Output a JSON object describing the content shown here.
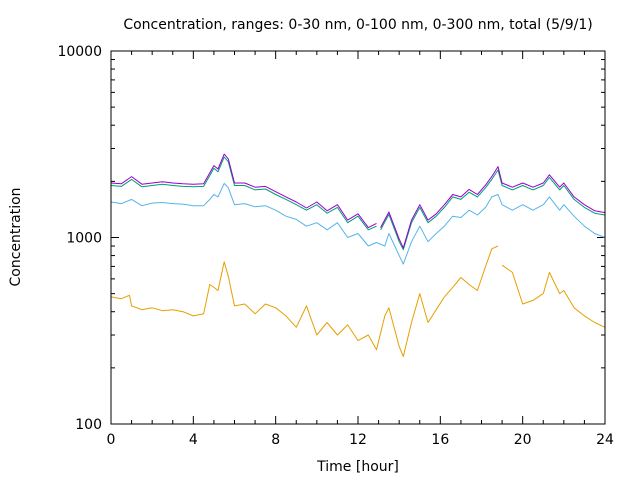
{
  "chart_data": {
    "type": "line",
    "title": "Concentration, ranges: 0-30 nm, 0-100 nm, 0-300 nm, total (5/9/1)",
    "xlabel": "Time [hour]",
    "ylabel": "Concentration",
    "xlim": [
      0,
      24
    ],
    "ylim": [
      100,
      10000
    ],
    "yscale": "log",
    "grid": false,
    "xticks": [
      {
        "value": 0,
        "label": "0"
      },
      {
        "value": 4,
        "label": "4"
      },
      {
        "value": 8,
        "label": "8"
      },
      {
        "value": 12,
        "label": "12"
      },
      {
        "value": 16,
        "label": "16"
      },
      {
        "value": 20,
        "label": "20"
      },
      {
        "value": 24,
        "label": "24"
      }
    ],
    "yticks": [
      {
        "value": 100,
        "label": "100"
      },
      {
        "value": 1000,
        "label": "1000"
      },
      {
        "value": 10000,
        "label": "10000"
      }
    ],
    "series": [
      {
        "color": "#e69f00",
        "x": [
          0,
          0.5,
          0.9,
          1.0,
          1.5,
          2.0,
          2.5,
          3.0,
          3.5,
          4.0,
          4.5,
          4.8,
          5.0,
          5.2,
          5.5,
          5.7,
          6.0,
          6.5,
          7.0,
          7.5,
          8.0,
          8.5,
          9.0,
          9.5,
          10.0,
          10.5,
          11.0,
          11.5,
          12.0,
          12.5,
          12.9,
          13.3,
          13.5,
          14.0,
          14.2,
          14.6,
          15.0,
          15.4,
          15.8,
          16.2,
          16.6,
          17.0,
          17.4,
          17.8,
          18.2,
          18.5,
          18.8,
          null,
          19.0,
          19.5,
          20.0,
          20.5,
          21.0,
          21.3,
          21.8,
          22.0,
          22.5,
          23.0,
          23.5,
          24.0
        ],
        "y": [
          480,
          470,
          490,
          430,
          410,
          420,
          405,
          410,
          400,
          380,
          390,
          560,
          540,
          520,
          740,
          620,
          430,
          440,
          390,
          440,
          420,
          380,
          330,
          430,
          300,
          350,
          300,
          340,
          280,
          300,
          250,
          380,
          420,
          260,
          230,
          350,
          500,
          350,
          410,
          480,
          540,
          610,
          560,
          520,
          700,
          870,
          900,
          null,
          710,
          650,
          440,
          460,
          500,
          650,
          500,
          520,
          420,
          380,
          350,
          330
        ]
      },
      {
        "color": "#56b4e9",
        "x": [
          0,
          0.5,
          1.0,
          1.5,
          2.0,
          2.5,
          3.0,
          3.5,
          4.0,
          4.5,
          4.8,
          5.0,
          5.2,
          5.5,
          5.7,
          6.0,
          6.5,
          7.0,
          7.5,
          8.0,
          8.5,
          9.0,
          9.5,
          10.0,
          10.5,
          11.0,
          11.5,
          12.0,
          12.5,
          12.9,
          13.3,
          13.5,
          14.0,
          14.2,
          14.6,
          15.0,
          15.4,
          15.8,
          16.2,
          16.6,
          17.0,
          17.4,
          17.8,
          18.2,
          18.5,
          18.8,
          19.0,
          19.5,
          20.0,
          20.5,
          21.0,
          21.3,
          21.8,
          22.0,
          22.5,
          23.0,
          23.5,
          24.0
        ],
        "y": [
          1550,
          1520,
          1600,
          1480,
          1530,
          1540,
          1520,
          1510,
          1480,
          1480,
          1600,
          1700,
          1650,
          1950,
          1850,
          1500,
          1520,
          1460,
          1480,
          1400,
          1300,
          1250,
          1150,
          1200,
          1100,
          1200,
          1000,
          1050,
          900,
          940,
          900,
          1050,
          800,
          720,
          950,
          1150,
          950,
          1050,
          1150,
          1300,
          1280,
          1400,
          1320,
          1450,
          1650,
          1700,
          1500,
          1400,
          1500,
          1400,
          1500,
          1650,
          1400,
          1500,
          1300,
          1150,
          1050,
          1000
        ]
      },
      {
        "color": "#009e73",
        "x": [
          0,
          0.5,
          1.0,
          1.5,
          2.0,
          2.5,
          3.0,
          3.5,
          4.0,
          4.5,
          4.8,
          5.0,
          5.2,
          5.5,
          5.7,
          6.0,
          6.5,
          7.0,
          7.5,
          8.0,
          8.5,
          9.0,
          9.5,
          10.0,
          10.5,
          11.0,
          11.5,
          12.0,
          12.5,
          12.9,
          null,
          13.1,
          13.5,
          14.0,
          14.2,
          14.6,
          15.0,
          15.4,
          15.8,
          16.2,
          16.6,
          17.0,
          17.4,
          17.8,
          18.2,
          18.5,
          18.8,
          19.0,
          19.5,
          20.0,
          20.5,
          21.0,
          21.3,
          21.8,
          22.0,
          22.5,
          23.0,
          23.5,
          24.0
        ],
        "y": [
          1900,
          1880,
          2050,
          1870,
          1900,
          1930,
          1900,
          1880,
          1870,
          1880,
          2150,
          2350,
          2250,
          2700,
          2550,
          1900,
          1900,
          1800,
          1820,
          1700,
          1600,
          1500,
          1400,
          1500,
          1350,
          1450,
          1200,
          1300,
          1100,
          1150,
          null,
          1100,
          1330,
          950,
          860,
          1200,
          1450,
          1200,
          1300,
          1450,
          1650,
          1600,
          1750,
          1650,
          1850,
          2050,
          2300,
          1900,
          1800,
          1900,
          1800,
          1900,
          2100,
          1800,
          1900,
          1600,
          1450,
          1350,
          1320
        ]
      },
      {
        "color": "#9400d3",
        "x": [
          0,
          0.5,
          1.0,
          1.5,
          2.0,
          2.5,
          3.0,
          3.5,
          4.0,
          4.5,
          4.8,
          5.0,
          5.2,
          5.5,
          5.7,
          6.0,
          6.5,
          7.0,
          7.5,
          8.0,
          8.5,
          9.0,
          9.5,
          10.0,
          10.5,
          11.0,
          11.5,
          12.0,
          12.5,
          12.9,
          null,
          13.1,
          13.5,
          14.0,
          14.2,
          14.6,
          15.0,
          15.4,
          15.8,
          16.2,
          16.6,
          17.0,
          17.4,
          17.8,
          18.2,
          18.5,
          18.8,
          19.0,
          19.5,
          20.0,
          20.5,
          21.0,
          21.3,
          21.8,
          22.0,
          22.5,
          23.0,
          23.5,
          24.0
        ],
        "y": [
          1960,
          1940,
          2120,
          1930,
          1960,
          1990,
          1960,
          1940,
          1930,
          1940,
          2220,
          2430,
          2330,
          2800,
          2640,
          1960,
          1960,
          1860,
          1880,
          1760,
          1650,
          1550,
          1440,
          1550,
          1390,
          1500,
          1240,
          1340,
          1130,
          1190,
          null,
          1130,
          1370,
          980,
          880,
          1240,
          1500,
          1240,
          1340,
          1500,
          1700,
          1650,
          1810,
          1700,
          1910,
          2120,
          2400,
          1960,
          1860,
          1960,
          1860,
          1960,
          2170,
          1860,
          1960,
          1650,
          1500,
          1390,
          1360
        ]
      }
    ]
  }
}
